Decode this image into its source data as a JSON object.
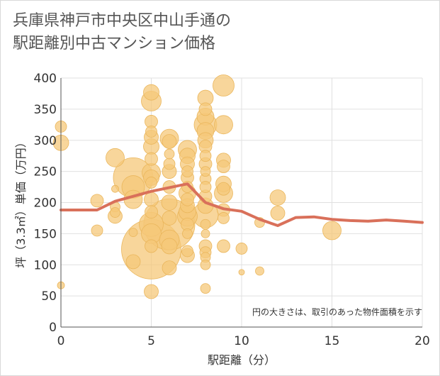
{
  "title_lines": [
    "兵庫県神戸市中央区中山手通の",
    "駅距離別中古マンション価格"
  ],
  "chart_data": {
    "type": "scatter",
    "xlabel": "駅距離（分）",
    "ylabel": "坪（3.3㎡）単価（万円）",
    "xlim": [
      0,
      20
    ],
    "ylim": [
      0,
      400
    ],
    "x_ticks": [
      0,
      5,
      10,
      15,
      20
    ],
    "y_ticks": [
      0,
      50,
      100,
      150,
      200,
      250,
      300,
      350,
      400
    ],
    "grid": true,
    "annotation": "円の大きさは、取引のあった物件面積を示す",
    "colors": {
      "bubble": "#f5c87a",
      "bubble_stroke": "#eab65c",
      "line": "#d9705a",
      "grid": "#e0e0e0",
      "axis": "#555555"
    },
    "points": [
      {
        "x": 0,
        "y": 322,
        "s": 8
      },
      {
        "x": 0,
        "y": 296,
        "s": 11
      },
      {
        "x": 0,
        "y": 67,
        "s": 5
      },
      {
        "x": 2,
        "y": 203,
        "s": 9
      },
      {
        "x": 2,
        "y": 155,
        "s": 8
      },
      {
        "x": 3,
        "y": 272,
        "s": 13
      },
      {
        "x": 3,
        "y": 222,
        "s": 5
      },
      {
        "x": 3,
        "y": 193,
        "s": 7
      },
      {
        "x": 3,
        "y": 184,
        "s": 7
      },
      {
        "x": 3,
        "y": 178,
        "s": 10
      },
      {
        "x": 4,
        "y": 240,
        "s": 28
      },
      {
        "x": 4,
        "y": 225,
        "s": 16
      },
      {
        "x": 4,
        "y": 205,
        "s": 13
      },
      {
        "x": 4,
        "y": 152,
        "s": 6
      },
      {
        "x": 4,
        "y": 105,
        "s": 10
      },
      {
        "x": 5,
        "y": 377,
        "s": 11
      },
      {
        "x": 5,
        "y": 363,
        "s": 14
      },
      {
        "x": 5,
        "y": 330,
        "s": 9
      },
      {
        "x": 5,
        "y": 314,
        "s": 8
      },
      {
        "x": 5,
        "y": 305,
        "s": 10
      },
      {
        "x": 5,
        "y": 290,
        "s": 11
      },
      {
        "x": 5,
        "y": 270,
        "s": 9
      },
      {
        "x": 5,
        "y": 248,
        "s": 13
      },
      {
        "x": 5,
        "y": 240,
        "s": 11
      },
      {
        "x": 5,
        "y": 232,
        "s": 8
      },
      {
        "x": 5,
        "y": 205,
        "s": 10
      },
      {
        "x": 5,
        "y": 185,
        "s": 9
      },
      {
        "x": 5,
        "y": 165,
        "s": 17
      },
      {
        "x": 5,
        "y": 150,
        "s": 14
      },
      {
        "x": 5,
        "y": 130,
        "s": 9
      },
      {
        "x": 5,
        "y": 125,
        "s": 42
      },
      {
        "x": 5,
        "y": 57,
        "s": 10
      },
      {
        "x": 6,
        "y": 303,
        "s": 13
      },
      {
        "x": 6,
        "y": 298,
        "s": 10
      },
      {
        "x": 6,
        "y": 278,
        "s": 7
      },
      {
        "x": 6,
        "y": 262,
        "s": 8
      },
      {
        "x": 6,
        "y": 250,
        "s": 10
      },
      {
        "x": 6,
        "y": 225,
        "s": 9
      },
      {
        "x": 6,
        "y": 200,
        "s": 11
      },
      {
        "x": 6,
        "y": 175,
        "s": 10
      },
      {
        "x": 6,
        "y": 165,
        "s": 36
      },
      {
        "x": 6,
        "y": 140,
        "s": 14
      },
      {
        "x": 6,
        "y": 130,
        "s": 11
      },
      {
        "x": 6,
        "y": 95,
        "s": 10
      },
      {
        "x": 7,
        "y": 285,
        "s": 13
      },
      {
        "x": 7,
        "y": 275,
        "s": 11
      },
      {
        "x": 7,
        "y": 262,
        "s": 10
      },
      {
        "x": 7,
        "y": 250,
        "s": 8
      },
      {
        "x": 7,
        "y": 240,
        "s": 9
      },
      {
        "x": 7,
        "y": 225,
        "s": 8
      },
      {
        "x": 7,
        "y": 215,
        "s": 12
      },
      {
        "x": 7,
        "y": 205,
        "s": 9
      },
      {
        "x": 7,
        "y": 195,
        "s": 10
      },
      {
        "x": 7,
        "y": 185,
        "s": 12
      },
      {
        "x": 7,
        "y": 178,
        "s": 14
      },
      {
        "x": 7,
        "y": 165,
        "s": 9
      },
      {
        "x": 7,
        "y": 150,
        "s": 7
      },
      {
        "x": 7,
        "y": 122,
        "s": 8
      },
      {
        "x": 7,
        "y": 115,
        "s": 10
      },
      {
        "x": 8,
        "y": 368,
        "s": 11
      },
      {
        "x": 8,
        "y": 350,
        "s": 9
      },
      {
        "x": 8,
        "y": 338,
        "s": 12
      },
      {
        "x": 8,
        "y": 325,
        "s": 16
      },
      {
        "x": 8,
        "y": 315,
        "s": 12
      },
      {
        "x": 8,
        "y": 300,
        "s": 11
      },
      {
        "x": 8,
        "y": 290,
        "s": 9
      },
      {
        "x": 8,
        "y": 275,
        "s": 8
      },
      {
        "x": 8,
        "y": 262,
        "s": 9
      },
      {
        "x": 8,
        "y": 250,
        "s": 7
      },
      {
        "x": 8,
        "y": 238,
        "s": 8
      },
      {
        "x": 8,
        "y": 225,
        "s": 8
      },
      {
        "x": 8,
        "y": 210,
        "s": 9
      },
      {
        "x": 8,
        "y": 195,
        "s": 11
      },
      {
        "x": 8,
        "y": 180,
        "s": 18
      },
      {
        "x": 8,
        "y": 165,
        "s": 7
      },
      {
        "x": 8,
        "y": 150,
        "s": 6
      },
      {
        "x": 8,
        "y": 130,
        "s": 9
      },
      {
        "x": 8,
        "y": 120,
        "s": 8
      },
      {
        "x": 8,
        "y": 112,
        "s": 7
      },
      {
        "x": 8,
        "y": 100,
        "s": 7
      },
      {
        "x": 8,
        "y": 62,
        "s": 7
      },
      {
        "x": 9,
        "y": 388,
        "s": 15
      },
      {
        "x": 9,
        "y": 325,
        "s": 13
      },
      {
        "x": 9,
        "y": 268,
        "s": 10
      },
      {
        "x": 9,
        "y": 258,
        "s": 9
      },
      {
        "x": 9,
        "y": 230,
        "s": 11
      },
      {
        "x": 9,
        "y": 222,
        "s": 9
      },
      {
        "x": 9,
        "y": 215,
        "s": 13
      },
      {
        "x": 9,
        "y": 188,
        "s": 9
      },
      {
        "x": 9,
        "y": 175,
        "s": 8
      },
      {
        "x": 9,
        "y": 130,
        "s": 9
      },
      {
        "x": 10,
        "y": 126,
        "s": 8
      },
      {
        "x": 10,
        "y": 88,
        "s": 4
      },
      {
        "x": 11,
        "y": 168,
        "s": 7
      },
      {
        "x": 11,
        "y": 90,
        "s": 6
      },
      {
        "x": 12,
        "y": 208,
        "s": 11
      },
      {
        "x": 12,
        "y": 183,
        "s": 10
      },
      {
        "x": 15,
        "y": 155,
        "s": 13
      }
    ],
    "series": [
      {
        "type": "line",
        "x": [
          0,
          1,
          2,
          3,
          4,
          5,
          6,
          7,
          8,
          9,
          10,
          11,
          12,
          13,
          14,
          15,
          16,
          17,
          18,
          19,
          20
        ],
        "values": [
          188,
          188,
          188,
          202,
          210,
          218,
          224,
          230,
          200,
          190,
          186,
          173,
          163,
          176,
          177,
          173,
          171,
          170,
          172,
          170,
          168
        ]
      }
    ]
  }
}
